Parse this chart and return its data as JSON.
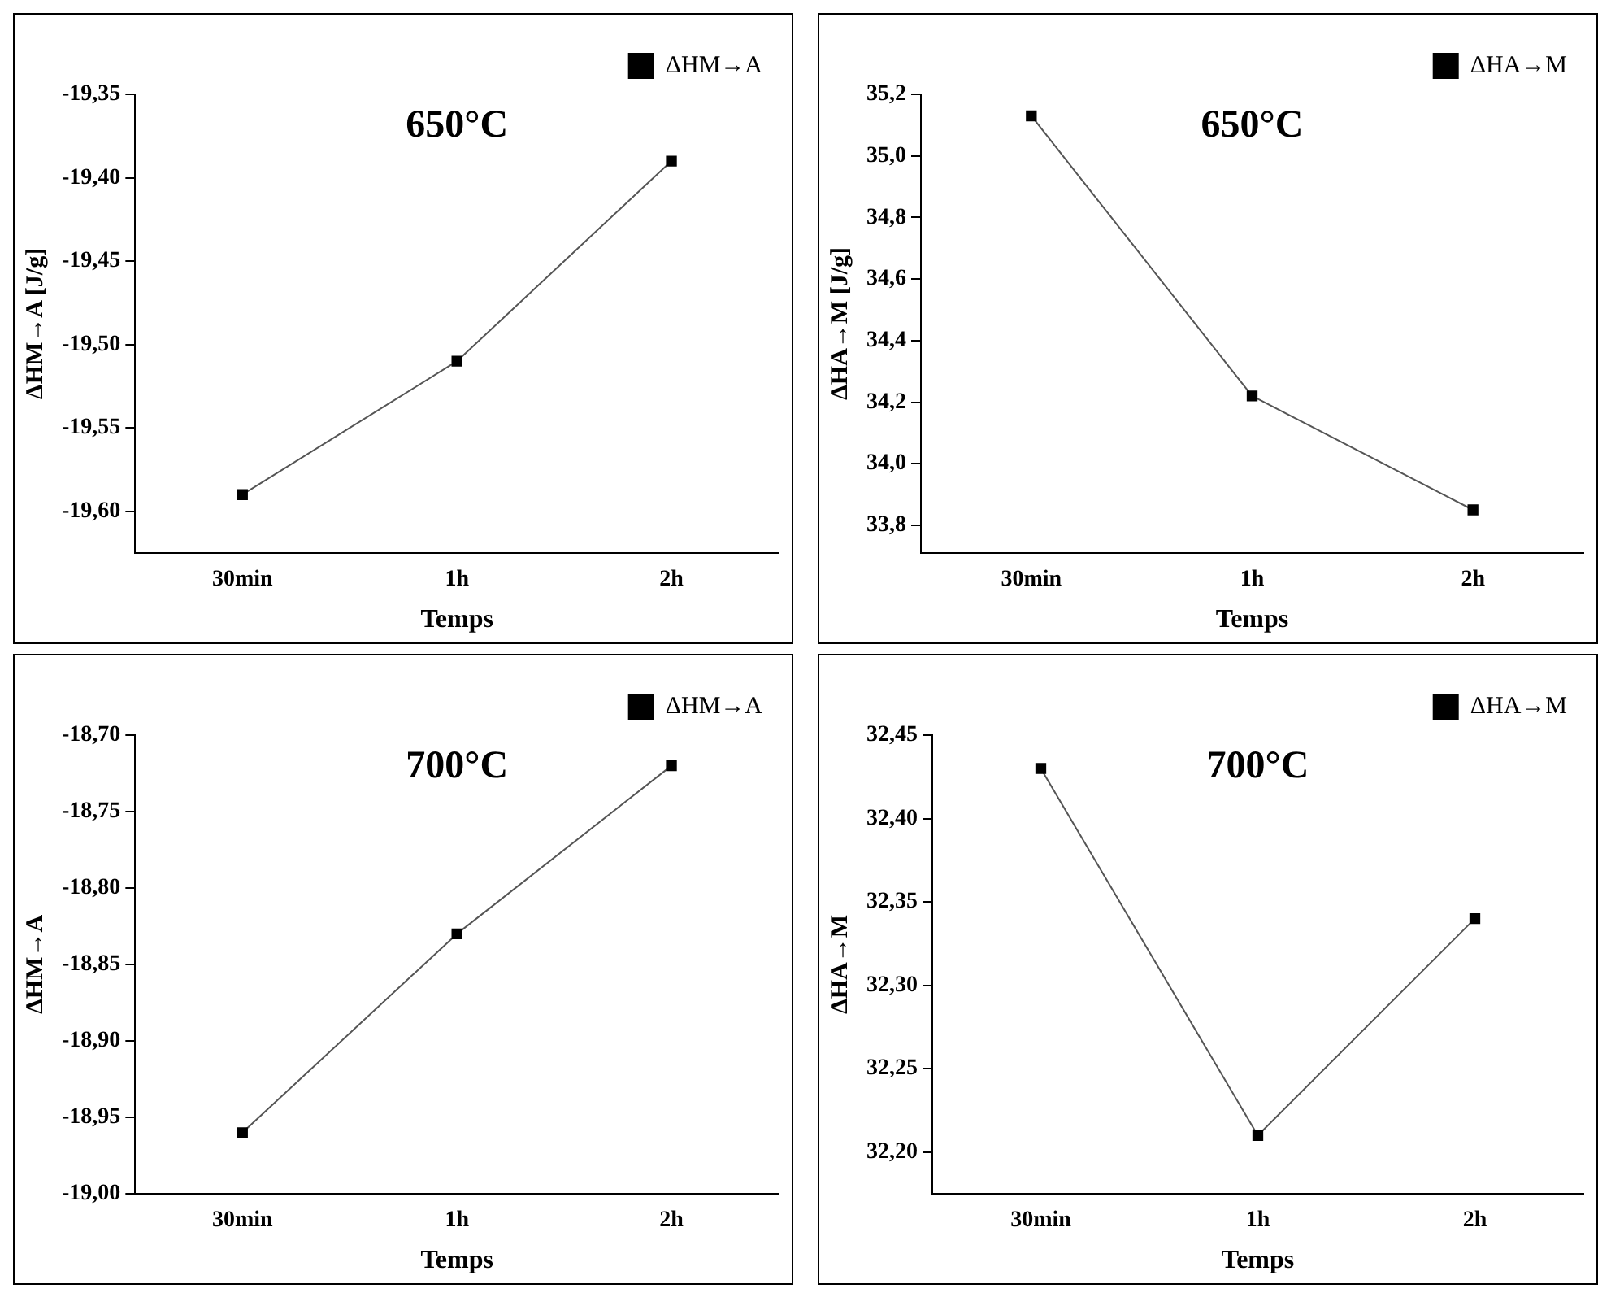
{
  "chart_data": [
    {
      "type": "line",
      "title": "650°C",
      "xlabel": "Temps",
      "ylabel": "ΔHM→A [J/g]",
      "categories": [
        "30min",
        "1h",
        "2h"
      ],
      "series": [
        {
          "name": "ΔHM→A",
          "color": "#000000",
          "values": [
            -19.59,
            -19.51,
            -19.39
          ]
        }
      ],
      "ylim": [
        -19.625,
        -19.35
      ],
      "yticks": [
        {
          "value": -19.35,
          "label": "-19,35"
        },
        {
          "value": -19.4,
          "label": "-19,40"
        },
        {
          "value": -19.45,
          "label": "-19,45"
        },
        {
          "value": -19.5,
          "label": "-19,50"
        },
        {
          "value": -19.55,
          "label": "-19,55"
        },
        {
          "value": -19.6,
          "label": "-19,60"
        }
      ],
      "marker": "square",
      "legend": "top right",
      "grid": false
    },
    {
      "type": "line",
      "title": "650°C",
      "xlabel": "Temps",
      "ylabel": "ΔHA→M [J/g]",
      "categories": [
        "30min",
        "1h",
        "2h"
      ],
      "series": [
        {
          "name": "ΔHA→M",
          "color": "#000000",
          "values": [
            35.13,
            34.22,
            33.85
          ]
        }
      ],
      "ylim": [
        33.71,
        35.2
      ],
      "yticks": [
        {
          "value": 33.8,
          "label": "33,8"
        },
        {
          "value": 34.0,
          "label": "34,0"
        },
        {
          "value": 34.2,
          "label": "34,2"
        },
        {
          "value": 34.4,
          "label": "34,4"
        },
        {
          "value": 34.6,
          "label": "34,6"
        },
        {
          "value": 34.8,
          "label": "34,8"
        },
        {
          "value": 35.0,
          "label": "35,0"
        },
        {
          "value": 35.2,
          "label": "35,2"
        }
      ],
      "marker": "square",
      "legend": "top right",
      "grid": false
    },
    {
      "type": "line",
      "title": "700°C",
      "xlabel": "Temps",
      "ylabel": "ΔHM→A",
      "categories": [
        "30min",
        "1h",
        "2h"
      ],
      "series": [
        {
          "name": "ΔHM→A",
          "color": "#000000",
          "values": [
            -18.96,
            -18.83,
            -18.72
          ]
        }
      ],
      "ylim": [
        -19.0,
        -18.7
      ],
      "yticks": [
        {
          "value": -18.7,
          "label": "-18,70"
        },
        {
          "value": -18.75,
          "label": "-18,75"
        },
        {
          "value": -18.8,
          "label": "-18,80"
        },
        {
          "value": -18.85,
          "label": "-18,85"
        },
        {
          "value": -18.9,
          "label": "-18,90"
        },
        {
          "value": -18.95,
          "label": "-18,95"
        },
        {
          "value": -19.0,
          "label": "-19,00"
        }
      ],
      "marker": "square",
      "legend": "top right",
      "grid": false
    },
    {
      "type": "line",
      "title": "700°C",
      "xlabel": "Temps",
      "ylabel": "ΔHA→M",
      "categories": [
        "30min",
        "1h",
        "2h"
      ],
      "series": [
        {
          "name": "ΔHA→M",
          "color": "#000000",
          "values": [
            32.43,
            32.21,
            32.34
          ]
        }
      ],
      "ylim": [
        32.175,
        32.45
      ],
      "yticks": [
        {
          "value": 32.2,
          "label": "32,20"
        },
        {
          "value": 32.25,
          "label": "32,25"
        },
        {
          "value": 32.3,
          "label": "32,30"
        },
        {
          "value": 32.35,
          "label": "32,35"
        },
        {
          "value": 32.4,
          "label": "32,40"
        },
        {
          "value": 32.45,
          "label": "32,45"
        }
      ],
      "marker": "square",
      "legend": "top right",
      "grid": false
    }
  ]
}
